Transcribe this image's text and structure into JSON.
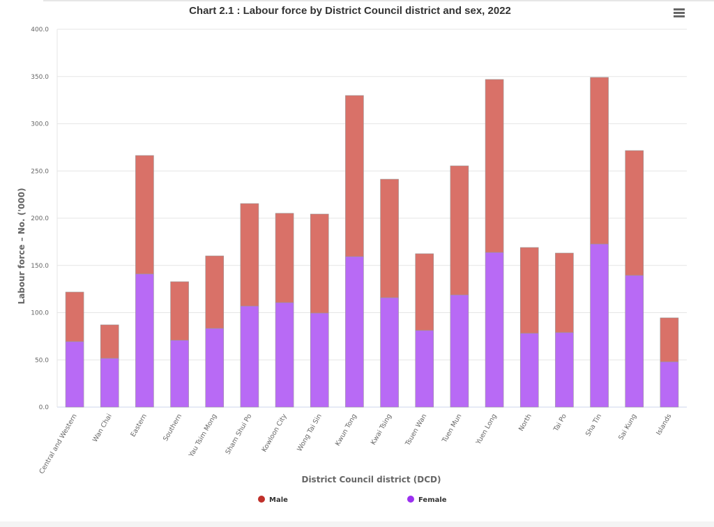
{
  "chart_data": {
    "type": "bar",
    "stacked": true,
    "title": "Chart 2.1 : Labour force by District Council district and sex, 2022",
    "xlabel": "District Council district (DCD)",
    "ylabel": "Labour force – No. ('000)",
    "ylim": [
      0,
      400
    ],
    "yticks": [
      "0.0",
      "50.0",
      "100.0",
      "150.0",
      "200.0",
      "250.0",
      "300.0",
      "350.0",
      "400.0"
    ],
    "grid": true,
    "legend": "bottom",
    "categories": [
      "Central and Western",
      "Wan Chai",
      "Eastern",
      "Southern",
      "Yau Tsim Mong",
      "Sham Shui Po",
      "Kowloon City",
      "Wong Tai Sin",
      "Kwun Tong",
      "Kwai Tsing",
      "Tsuen Wan",
      "Tuen Mun",
      "Yuen Long",
      "North",
      "Tai Po",
      "Sha Tin",
      "Sai Kung",
      "Islands"
    ],
    "series": [
      {
        "name": "Male",
        "color": "#c0302a",
        "bar_color": "#d97168",
        "values": [
          52.4,
          35.4,
          125.4,
          62.0,
          76.7,
          108.5,
          94.5,
          104.8,
          170.5,
          125.4,
          81.2,
          136.6,
          183.1,
          90.8,
          84.1,
          176.4,
          132.1,
          46.5
        ]
      },
      {
        "name": "Female",
        "color": "#9b30f0",
        "bar_color": "#b86af5",
        "values": [
          69.4,
          51.7,
          141.0,
          70.8,
          83.4,
          107.0,
          110.7,
          99.6,
          159.4,
          115.9,
          81.2,
          118.8,
          163.8,
          78.2,
          79.0,
          172.7,
          139.5,
          48.0
        ]
      }
    ]
  },
  "menu_icon": "hamburger-menu-icon"
}
